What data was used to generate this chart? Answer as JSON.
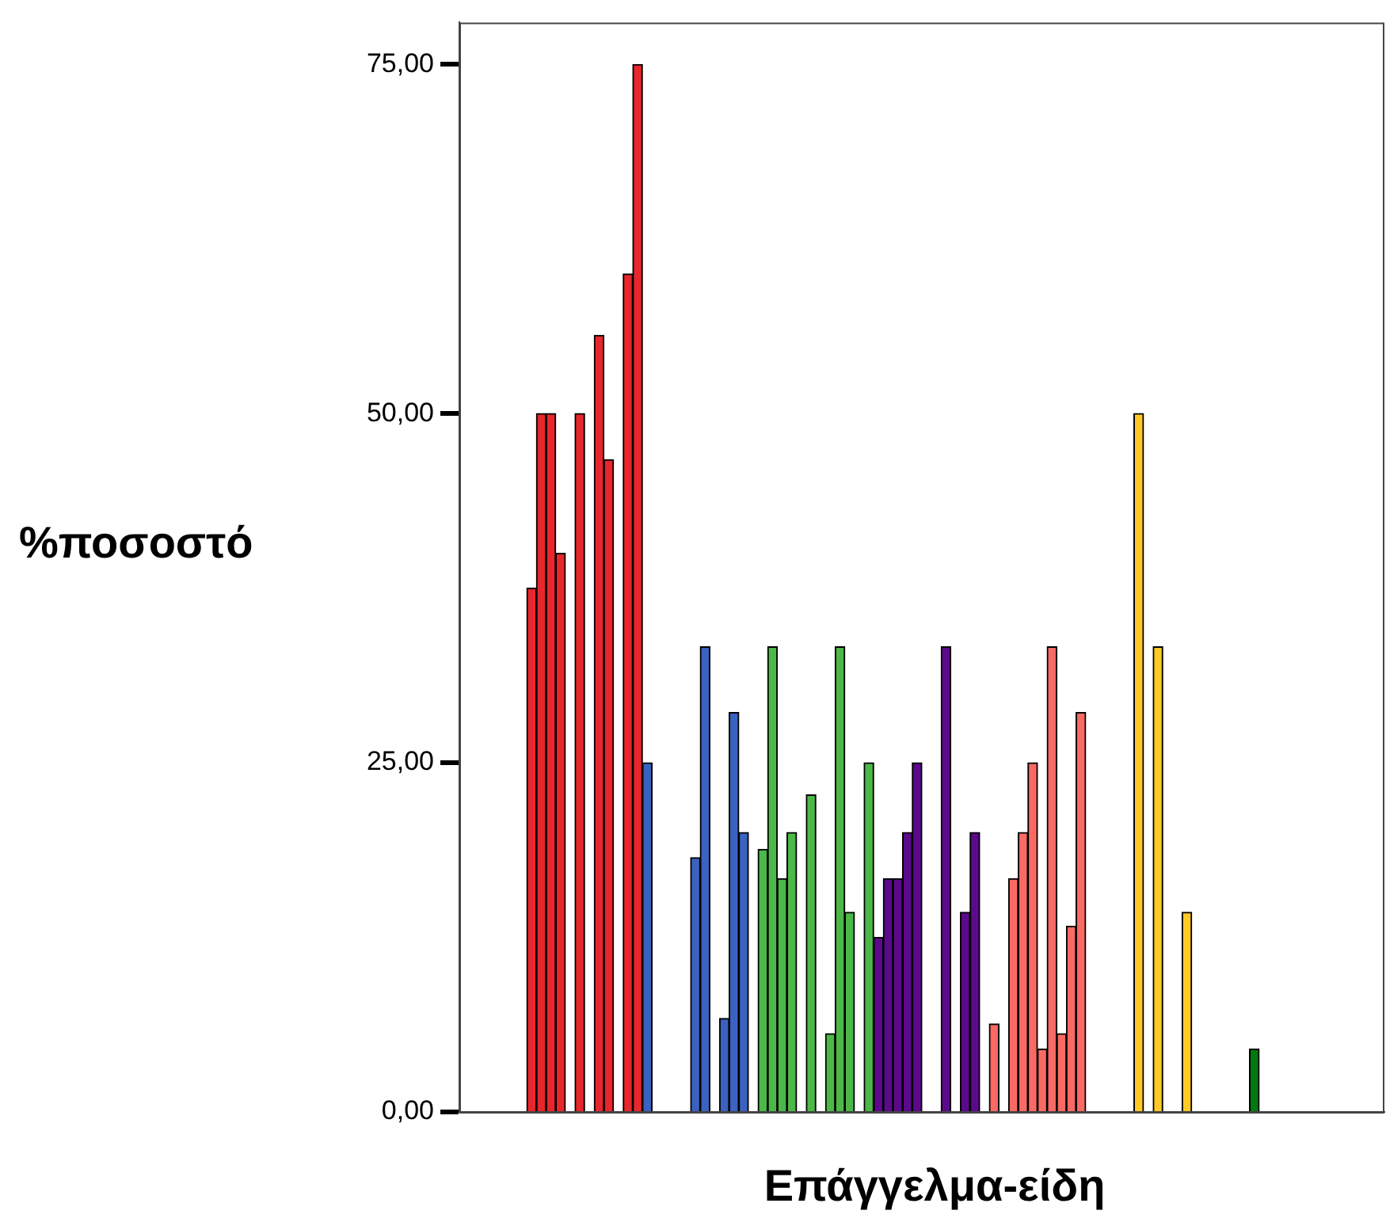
{
  "chart_data": {
    "type": "bar",
    "xlabel": "Επάγγελμα-είδη",
    "ylabel": "%ποσοστό",
    "categories": [
      null,
      null,
      null,
      null,
      null,
      null,
      null,
      null,
      null,
      null,
      null,
      null,
      null,
      null,
      null,
      null,
      null,
      null,
      null,
      null,
      null,
      null,
      null,
      null,
      null,
      null,
      null,
      null,
      null,
      null,
      null,
      null,
      null,
      null,
      null,
      null,
      null,
      null,
      null,
      null,
      null,
      null,
      null,
      null,
      null,
      null,
      null,
      null,
      null,
      null,
      null,
      null,
      null,
      null,
      null,
      null,
      null,
      null,
      null,
      null,
      null,
      null,
      null,
      null,
      null,
      null,
      null,
      null,
      null,
      null,
      null,
      null,
      null,
      null,
      null,
      null,
      null,
      null,
      null,
      null,
      null,
      null,
      null,
      null,
      null,
      null,
      null,
      null,
      null,
      null,
      null,
      null,
      null,
      null,
      null,
      null
    ],
    "values": [
      null,
      null,
      null,
      null,
      null,
      null,
      null,
      37.5,
      50,
      50,
      40,
      null,
      50,
      null,
      55.6,
      46.7,
      null,
      60,
      75,
      25,
      null,
      null,
      null,
      null,
      18.2,
      33.3,
      null,
      6.7,
      28.6,
      20,
      null,
      18.8,
      33.3,
      16.7,
      20,
      null,
      22.7,
      null,
      5.6,
      33.3,
      14.3,
      null,
      25,
      12.5,
      16.7,
      16.7,
      20,
      25,
      null,
      null,
      33.3,
      null,
      14.3,
      20,
      null,
      6.3,
      null,
      16.7,
      20,
      25,
      4.5,
      33.3,
      5.6,
      13.3,
      28.6,
      null,
      null,
      null,
      null,
      null,
      50,
      null,
      33.3,
      null,
      null,
      14.3,
      null,
      null,
      null,
      null,
      null,
      null,
      4.5,
      null,
      null,
      null,
      null,
      null,
      null,
      null,
      null,
      null,
      null,
      null,
      null,
      null
    ],
    "colors": [
      "#e8262b",
      "#e8262b",
      "#e8262b",
      "#e8262b",
      "#e8262b",
      "#e8262b",
      "#e8262b",
      "#e8262b",
      "#e8262b",
      "#e8262b",
      "#e8262b",
      "#e8262b",
      "#e8262b",
      "#e8262b",
      "#e8262b",
      "#e8262b",
      "#e8262b",
      "#e8262b",
      "#e8262b",
      "#3a62c0",
      "#3a62c0",
      "#3a62c0",
      "#3a62c0",
      "#3a62c0",
      "#3a62c0",
      "#3a62c0",
      "#3a62c0",
      "#3a62c0",
      "#3a62c0",
      "#3a62c0",
      "#4cb848",
      "#4cb848",
      "#4cb848",
      "#4cb848",
      "#4cb848",
      "#4cb848",
      "#4cb848",
      "#4cb848",
      "#4cb848",
      "#4cb848",
      "#4cb848",
      "#4cb848",
      "#4cb848",
      "#5c0a8c",
      "#5c0a8c",
      "#5c0a8c",
      "#5c0a8c",
      "#5c0a8c",
      "#5c0a8c",
      "#5c0a8c",
      "#5c0a8c",
      "#5c0a8c",
      "#5c0a8c",
      "#5c0a8c",
      "#f86a63",
      "#f86a63",
      "#f86a63",
      "#f86a63",
      "#f86a63",
      "#f86a63",
      "#f86a63",
      "#f86a63",
      "#f86a63",
      "#f86a63",
      "#f86a63",
      "#ffc926",
      "#ffc926",
      "#ffc926",
      "#ffc926",
      "#ffc926",
      "#ffc926",
      "#ffc926",
      "#ffc926",
      "#ffc926",
      "#ffc926",
      "#ffc926",
      "#ffc926",
      "#ffc926",
      "#ffc926",
      "#007a0c",
      "#007a0c",
      "#007a0c",
      "#007a0c",
      "#007a0c",
      "#007a0c",
      "#007a0c",
      "#007a0c",
      "#007a0c",
      "#007a0c",
      "#007a0c",
      "#007a0c",
      "#007a0c",
      "#007a0c",
      "#007a0c",
      "#007a0c",
      "#007a0c"
    ],
    "ylim": [
      0,
      78
    ],
    "yticks": [
      {
        "value": 0,
        "label": "0,00"
      },
      {
        "value": 25,
        "label": "25,00"
      },
      {
        "value": 50,
        "label": "50,00"
      },
      {
        "value": 75,
        "label": "75,00"
      }
    ],
    "grid": false,
    "legend": false
  }
}
